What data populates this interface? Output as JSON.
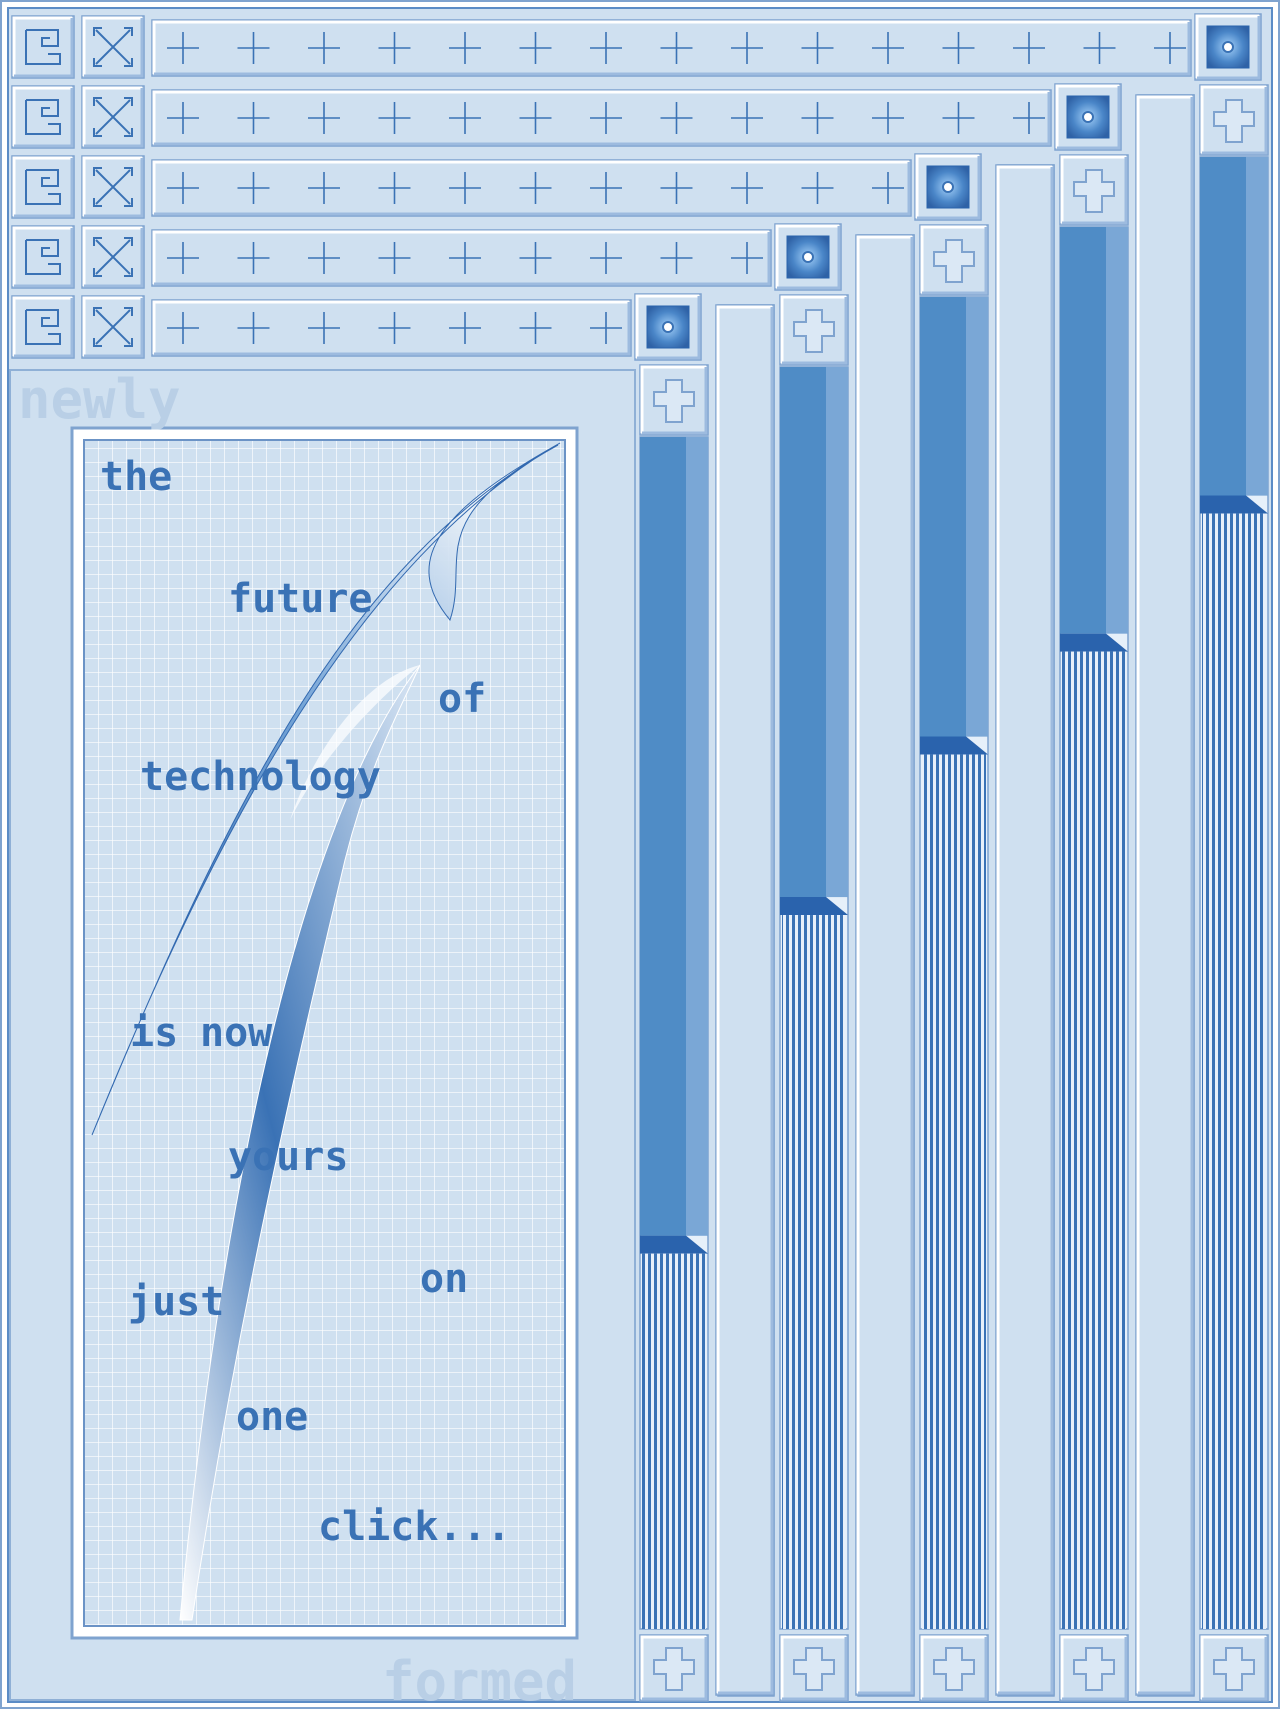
{
  "artwork": {
    "poem_lines": [
      "the",
      "future",
      "of",
      "technology",
      "is",
      "now",
      "yours",
      "just",
      "on",
      "one",
      "click..."
    ],
    "watermark_top": "newly",
    "watermark_bottom": "formed"
  },
  "scroll_tracks": [
    {
      "name": "track-1",
      "fill_fraction": 0.33
    },
    {
      "name": "track-2",
      "fill_fraction": 0.58
    },
    {
      "name": "track-3",
      "fill_fraction": 0.67
    },
    {
      "name": "track-4",
      "fill_fraction": 0.71
    },
    {
      "name": "track-5",
      "fill_fraction": 0.77
    }
  ],
  "colors": {
    "panel": "#cfe0f0",
    "panel_light": "#e6f0fa",
    "frame": "#7fa3cf",
    "accent": "#3a72b5",
    "accent_dark": "#2a63ad",
    "accent_mid": "#4f8cc6"
  },
  "icons": {
    "row_glyph_a": "spiral-maze-icon",
    "row_glyph_b": "cross-pattern-icon",
    "rail_mark": "plus-icon",
    "column_mark": "x-icon",
    "corner_tile": "eye-tile-icon",
    "arrow_tile": "plus-arrow-icon"
  }
}
